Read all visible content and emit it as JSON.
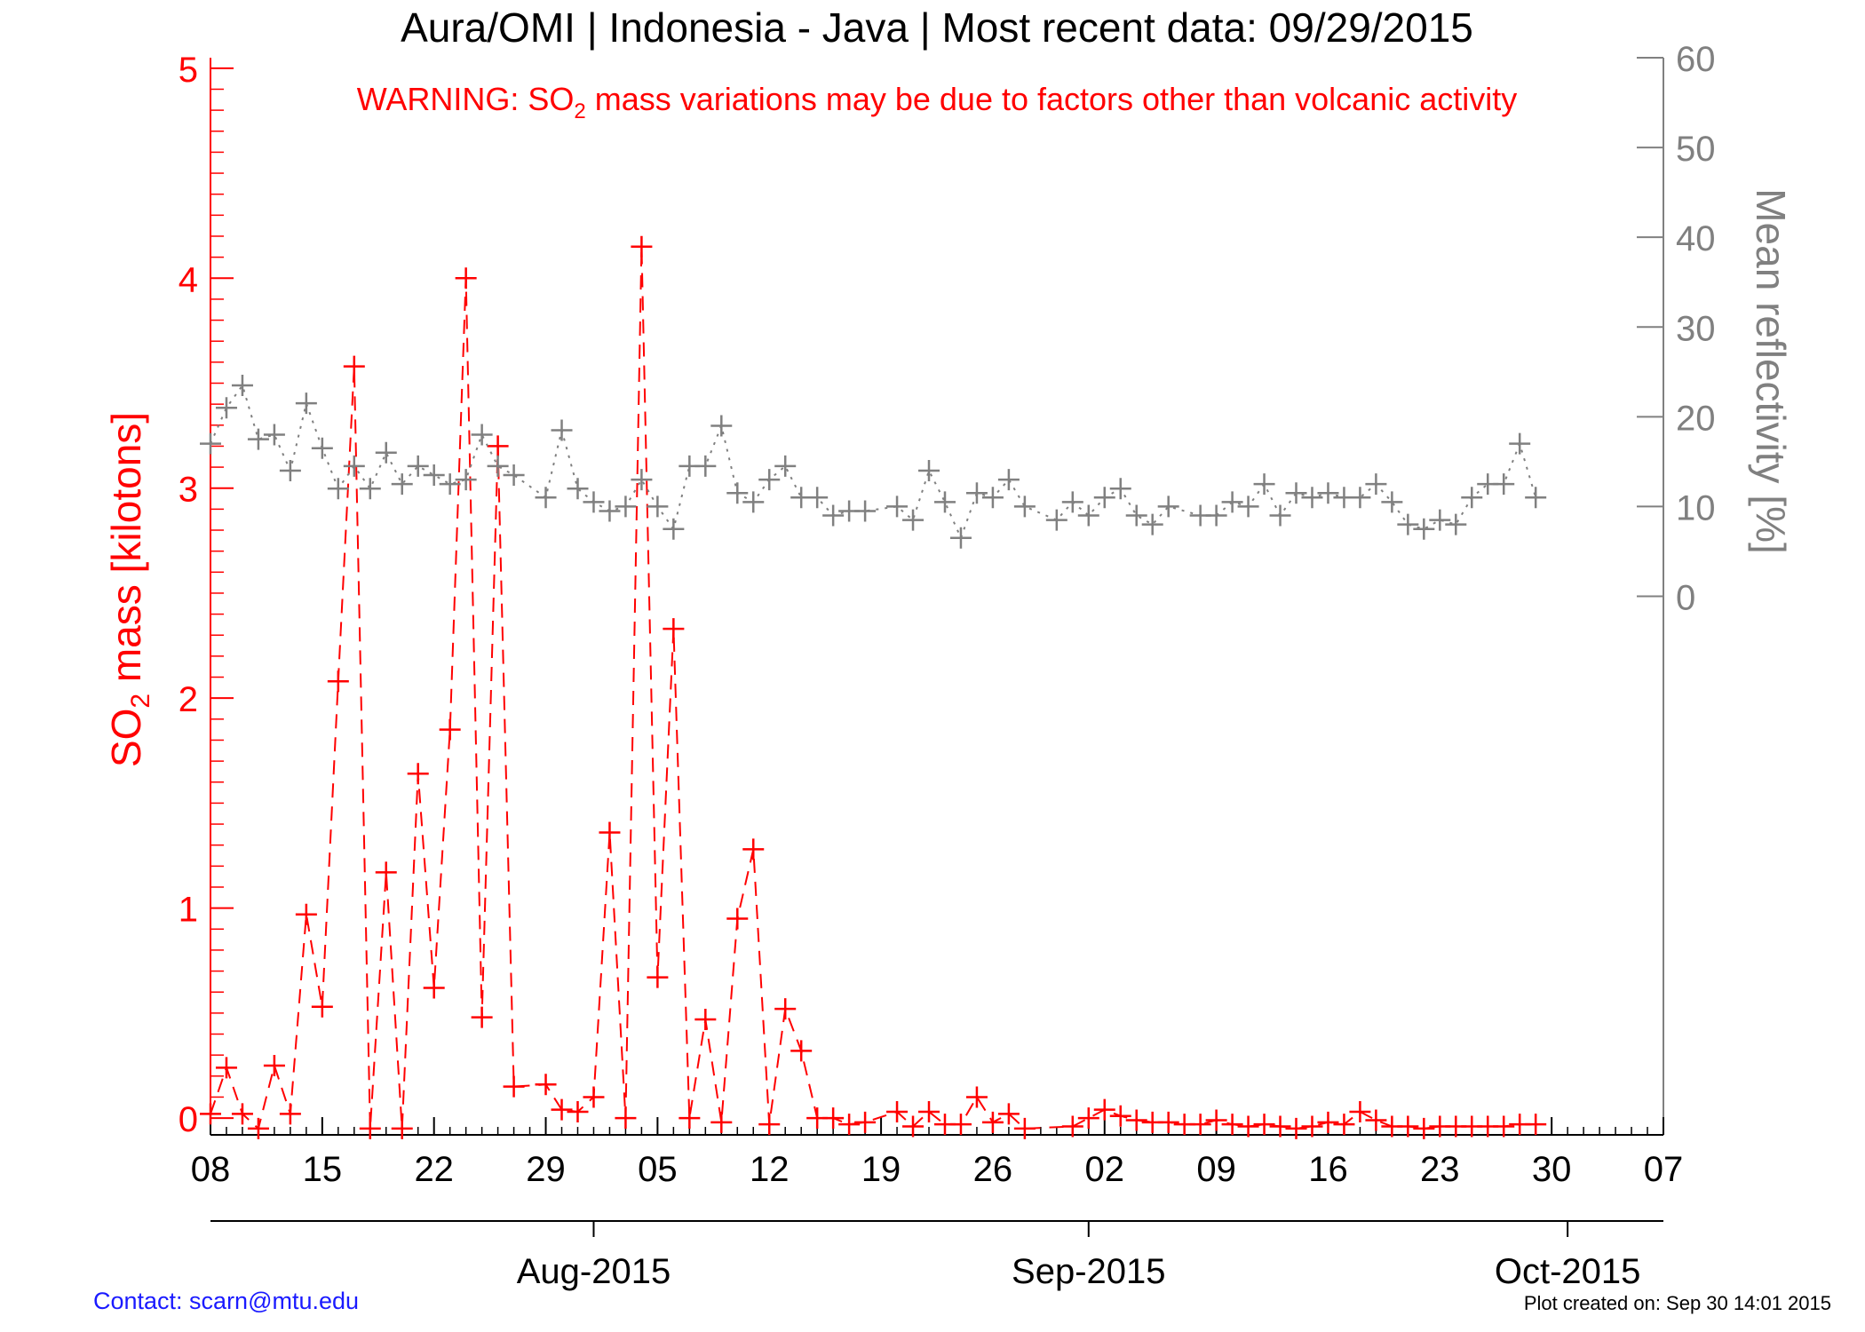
{
  "title": "Aura/OMI | Indonesia - Java | Most recent data: 09/29/2015",
  "warning": {
    "prefix": "WARNING: SO",
    "subscript": "2",
    "suffix": " mass variations may be due to factors other than volcanic activity"
  },
  "footer": {
    "contact": "Contact: scarn@mtu.edu",
    "created": "Plot created on: Sep 30 14:01 2015"
  },
  "colors": {
    "so2": "#ff0000",
    "reflectivity": "#808080",
    "axis": "#000000",
    "contact": "#1a1aff"
  },
  "chart_data": {
    "type": "line",
    "title": "Aura/OMI | Indonesia - Java | Most recent data: 09/29/2015",
    "x_axis": {
      "range": [
        "2015-07-08",
        "2015-10-07"
      ],
      "tick_dates": [
        "2015-07-08",
        "2015-07-15",
        "2015-07-22",
        "2015-07-29",
        "2015-08-05",
        "2015-08-12",
        "2015-08-19",
        "2015-08-26",
        "2015-09-02",
        "2015-09-09",
        "2015-09-16",
        "2015-09-23",
        "2015-09-30",
        "2015-10-07"
      ],
      "tick_labels": [
        "08",
        "15",
        "22",
        "29",
        "05",
        "12",
        "19",
        "26",
        "02",
        "09",
        "16",
        "23",
        "30",
        "07"
      ],
      "month_dates": [
        "2015-08-01",
        "2015-09-01",
        "2015-10-01"
      ],
      "month_labels": [
        "Aug-2015",
        "Sep-2015",
        "Oct-2015"
      ]
    },
    "y_left": {
      "label_prefix": "SO",
      "label_sub": "2",
      "label_suffix": " mass [kilotons]",
      "range": [
        -0.08,
        5.05
      ],
      "ticks": [
        0,
        1,
        2,
        3,
        4,
        5
      ],
      "tick_labels": [
        "0",
        "1",
        "2",
        "3",
        "4",
        "5"
      ]
    },
    "y_right": {
      "label": "Mean reflectivity [%]",
      "range": [
        -60,
        60
      ],
      "ticks": [
        0,
        10,
        20,
        30,
        40,
        50,
        60
      ],
      "tick_labels": [
        "0",
        "10",
        "20",
        "30",
        "40",
        "50",
        "60"
      ]
    },
    "series": [
      {
        "axis": "left",
        "color": "#ff0000",
        "style": "dashed",
        "marker": "plus",
        "points": [
          [
            "2015-07-08",
            0.02
          ],
          [
            "2015-07-09",
            0.24
          ],
          [
            "2015-07-10",
            0.02
          ],
          [
            "2015-07-11",
            -0.05
          ],
          [
            "2015-07-12",
            0.25
          ],
          [
            "2015-07-13",
            0.02
          ],
          [
            "2015-07-14",
            0.97
          ],
          [
            "2015-07-15",
            0.53
          ],
          [
            "2015-07-16",
            2.08
          ],
          [
            "2015-07-17",
            3.58
          ],
          [
            "2015-07-18",
            -0.05
          ],
          [
            "2015-07-19",
            1.17
          ],
          [
            "2015-07-20",
            -0.05
          ],
          [
            "2015-07-21",
            1.64
          ],
          [
            "2015-07-22",
            0.62
          ],
          [
            "2015-07-23",
            1.85
          ],
          [
            "2015-07-24",
            4.0
          ],
          [
            "2015-07-25",
            0.48
          ],
          [
            "2015-07-26",
            3.2
          ],
          [
            "2015-07-27",
            0.15
          ],
          [
            "2015-07-29",
            0.16
          ],
          [
            "2015-07-30",
            0.04
          ],
          [
            "2015-07-31",
            0.03
          ],
          [
            "2015-08-01",
            0.1
          ],
          [
            "2015-08-02",
            1.36
          ],
          [
            "2015-08-03",
            0.0
          ],
          [
            "2015-08-04",
            4.15
          ],
          [
            "2015-08-05",
            0.67
          ],
          [
            "2015-08-06",
            2.33
          ],
          [
            "2015-08-07",
            0.0
          ],
          [
            "2015-08-08",
            0.47
          ],
          [
            "2015-08-09",
            -0.02
          ],
          [
            "2015-08-10",
            0.95
          ],
          [
            "2015-08-11",
            1.28
          ],
          [
            "2015-08-12",
            -0.03
          ],
          [
            "2015-08-13",
            0.52
          ],
          [
            "2015-08-14",
            0.32
          ],
          [
            "2015-08-15",
            0.0
          ],
          [
            "2015-08-16",
            0.0
          ],
          [
            "2015-08-17",
            -0.03
          ],
          [
            "2015-08-18",
            -0.02
          ],
          [
            "2015-08-20",
            0.03
          ],
          [
            "2015-08-21",
            -0.04
          ],
          [
            "2015-08-22",
            0.03
          ],
          [
            "2015-08-23",
            -0.03
          ],
          [
            "2015-08-24",
            -0.03
          ],
          [
            "2015-08-25",
            0.1
          ],
          [
            "2015-08-26",
            -0.02
          ],
          [
            "2015-08-27",
            0.02
          ],
          [
            "2015-08-28",
            -0.05
          ],
          [
            "2015-08-31",
            -0.04
          ],
          [
            "2015-09-01",
            0.0
          ],
          [
            "2015-09-02",
            0.04
          ],
          [
            "2015-09-03",
            0.01
          ],
          [
            "2015-09-04",
            -0.01
          ],
          [
            "2015-09-05",
            -0.02
          ],
          [
            "2015-09-06",
            -0.02
          ],
          [
            "2015-09-07",
            -0.03
          ],
          [
            "2015-09-08",
            -0.03
          ],
          [
            "2015-09-09",
            -0.01
          ],
          [
            "2015-09-10",
            -0.03
          ],
          [
            "2015-09-11",
            -0.04
          ],
          [
            "2015-09-12",
            -0.03
          ],
          [
            "2015-09-13",
            -0.04
          ],
          [
            "2015-09-14",
            -0.05
          ],
          [
            "2015-09-15",
            -0.04
          ],
          [
            "2015-09-16",
            -0.02
          ],
          [
            "2015-09-17",
            -0.03
          ],
          [
            "2015-09-18",
            0.03
          ],
          [
            "2015-09-19",
            -0.01
          ],
          [
            "2015-09-20",
            -0.04
          ],
          [
            "2015-09-21",
            -0.04
          ],
          [
            "2015-09-22",
            -0.05
          ],
          [
            "2015-09-23",
            -0.04
          ],
          [
            "2015-09-24",
            -0.04
          ],
          [
            "2015-09-25",
            -0.04
          ],
          [
            "2015-09-26",
            -0.04
          ],
          [
            "2015-09-27",
            -0.04
          ],
          [
            "2015-09-28",
            -0.03
          ],
          [
            "2015-09-29",
            -0.03
          ]
        ]
      },
      {
        "axis": "right",
        "color": "#808080",
        "style": "dotted",
        "marker": "plus",
        "points": [
          [
            "2015-07-08",
            17
          ],
          [
            "2015-07-09",
            21
          ],
          [
            "2015-07-10",
            23.5
          ],
          [
            "2015-07-11",
            17.5
          ],
          [
            "2015-07-12",
            18
          ],
          [
            "2015-07-13",
            14
          ],
          [
            "2015-07-14",
            21.5
          ],
          [
            "2015-07-15",
            16.5
          ],
          [
            "2015-07-16",
            12
          ],
          [
            "2015-07-17",
            14.5
          ],
          [
            "2015-07-18",
            12
          ],
          [
            "2015-07-19",
            16
          ],
          [
            "2015-07-20",
            12.5
          ],
          [
            "2015-07-21",
            14.5
          ],
          [
            "2015-07-22",
            13.5
          ],
          [
            "2015-07-23",
            12.5
          ],
          [
            "2015-07-24",
            13
          ],
          [
            "2015-07-25",
            18
          ],
          [
            "2015-07-26",
            14.5
          ],
          [
            "2015-07-27",
            13.5
          ],
          [
            "2015-07-29",
            11
          ],
          [
            "2015-07-30",
            18.5
          ],
          [
            "2015-07-31",
            12
          ],
          [
            "2015-08-01",
            10.5
          ],
          [
            "2015-08-02",
            9.5
          ],
          [
            "2015-08-03",
            10
          ],
          [
            "2015-08-04",
            13
          ],
          [
            "2015-08-05",
            10
          ],
          [
            "2015-08-06",
            7.5
          ],
          [
            "2015-08-07",
            14.5
          ],
          [
            "2015-08-08",
            14.5
          ],
          [
            "2015-08-09",
            19
          ],
          [
            "2015-08-10",
            11.5
          ],
          [
            "2015-08-11",
            10.5
          ],
          [
            "2015-08-12",
            13
          ],
          [
            "2015-08-13",
            14.5
          ],
          [
            "2015-08-14",
            11
          ],
          [
            "2015-08-15",
            11
          ],
          [
            "2015-08-16",
            9
          ],
          [
            "2015-08-17",
            9.5
          ],
          [
            "2015-08-18",
            9.5
          ],
          [
            "2015-08-20",
            10
          ],
          [
            "2015-08-21",
            8.5
          ],
          [
            "2015-08-22",
            14
          ],
          [
            "2015-08-23",
            10.5
          ],
          [
            "2015-08-24",
            6.5
          ],
          [
            "2015-08-25",
            11.5
          ],
          [
            "2015-08-26",
            11
          ],
          [
            "2015-08-27",
            13
          ],
          [
            "2015-08-28",
            10
          ],
          [
            "2015-08-30",
            8.5
          ],
          [
            "2015-08-31",
            10.5
          ],
          [
            "2015-09-01",
            9
          ],
          [
            "2015-09-02",
            11
          ],
          [
            "2015-09-03",
            12
          ],
          [
            "2015-09-04",
            9
          ],
          [
            "2015-09-05",
            8
          ],
          [
            "2015-09-06",
            10
          ],
          [
            "2015-09-08",
            9
          ],
          [
            "2015-09-09",
            9
          ],
          [
            "2015-09-10",
            10.5
          ],
          [
            "2015-09-11",
            10
          ],
          [
            "2015-09-12",
            12.5
          ],
          [
            "2015-09-13",
            9
          ],
          [
            "2015-09-14",
            11.5
          ],
          [
            "2015-09-15",
            11
          ],
          [
            "2015-09-16",
            11.5
          ],
          [
            "2015-09-17",
            11
          ],
          [
            "2015-09-18",
            11
          ],
          [
            "2015-09-19",
            12.5
          ],
          [
            "2015-09-20",
            10.5
          ],
          [
            "2015-09-21",
            8
          ],
          [
            "2015-09-22",
            7.5
          ],
          [
            "2015-09-23",
            8.5
          ],
          [
            "2015-09-24",
            8
          ],
          [
            "2015-09-25",
            11
          ],
          [
            "2015-09-26",
            12.5
          ],
          [
            "2015-09-27",
            12.5
          ],
          [
            "2015-09-28",
            17
          ],
          [
            "2015-09-29",
            11
          ]
        ]
      }
    ]
  }
}
